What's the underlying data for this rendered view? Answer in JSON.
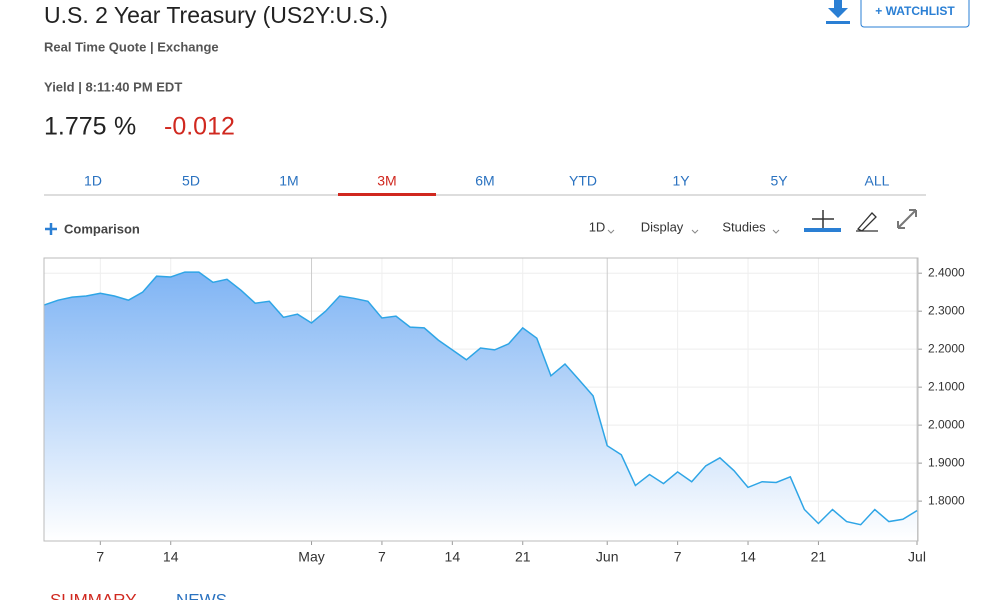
{
  "header": {
    "title": "U.S. 2 Year Treasury (US2Y:U.S.)",
    "subtitle": "Real Time Quote | Exchange",
    "timestamp": "Yield | 8:11:40 PM EDT",
    "price": "1.775",
    "unit": "%",
    "change": "-0.012",
    "watchlist": "+ WATCHLIST"
  },
  "tabs": {
    "items": [
      "1D",
      "5D",
      "1M",
      "3M",
      "6M",
      "YTD",
      "1Y",
      "5Y",
      "ALL"
    ],
    "active": "3M"
  },
  "toolbar": {
    "comparison": "Comparison",
    "items": [
      "1D",
      "Display",
      "Studies"
    ]
  },
  "bottom_tabs": [
    "SUMMARY",
    "NEWS"
  ],
  "chart_data": {
    "type": "area",
    "line_color": "#2ea5e6",
    "fill_color": "#7fb4f4",
    "categories": [
      null,
      null,
      null,
      null,
      "7",
      null,
      null,
      null,
      null,
      "14",
      null,
      null,
      null,
      null,
      null,
      null,
      null,
      null,
      null,
      "May",
      null,
      null,
      null,
      null,
      "7",
      null,
      null,
      null,
      null,
      "14",
      null,
      null,
      null,
      null,
      "21",
      null,
      null,
      null,
      null,
      null,
      "Jun",
      null,
      null,
      null,
      null,
      "7",
      null,
      null,
      null,
      null,
      "14",
      null,
      null,
      null,
      null,
      "21",
      null,
      null,
      null,
      null,
      null,
      null,
      "Jul"
    ],
    "values": [
      2.316,
      2.329,
      2.337,
      2.34,
      2.347,
      2.34,
      2.329,
      2.35,
      2.392,
      2.39,
      2.403,
      2.403,
      2.376,
      2.384,
      2.355,
      2.321,
      2.326,
      2.284,
      2.292,
      2.269,
      2.3,
      2.34,
      2.334,
      2.326,
      2.282,
      2.287,
      2.258,
      2.256,
      2.224,
      2.198,
      2.172,
      2.203,
      2.198,
      2.214,
      2.256,
      2.229,
      2.13,
      2.161,
      2.119,
      2.077,
      1.946,
      1.922,
      1.841,
      1.87,
      1.846,
      1.877,
      1.851,
      1.893,
      1.914,
      1.88,
      1.836,
      1.851,
      1.849,
      1.864,
      1.778,
      1.741,
      1.778,
      1.746,
      1.738,
      1.778,
      1.746,
      1.752,
      1.775
    ],
    "ylim": [
      1.695,
      2.44
    ],
    "yticks": [
      {
        "value": 1.8,
        "label": "1.8000"
      },
      {
        "value": 1.9,
        "label": "1.9000"
      },
      {
        "value": 2.0,
        "label": "2.0000"
      },
      {
        "value": 2.1,
        "label": "2.1000"
      },
      {
        "value": 2.2,
        "label": "2.2000"
      },
      {
        "value": 2.3,
        "label": "2.3000"
      },
      {
        "value": 2.4,
        "label": "2.4000"
      }
    ],
    "grid": true
  }
}
